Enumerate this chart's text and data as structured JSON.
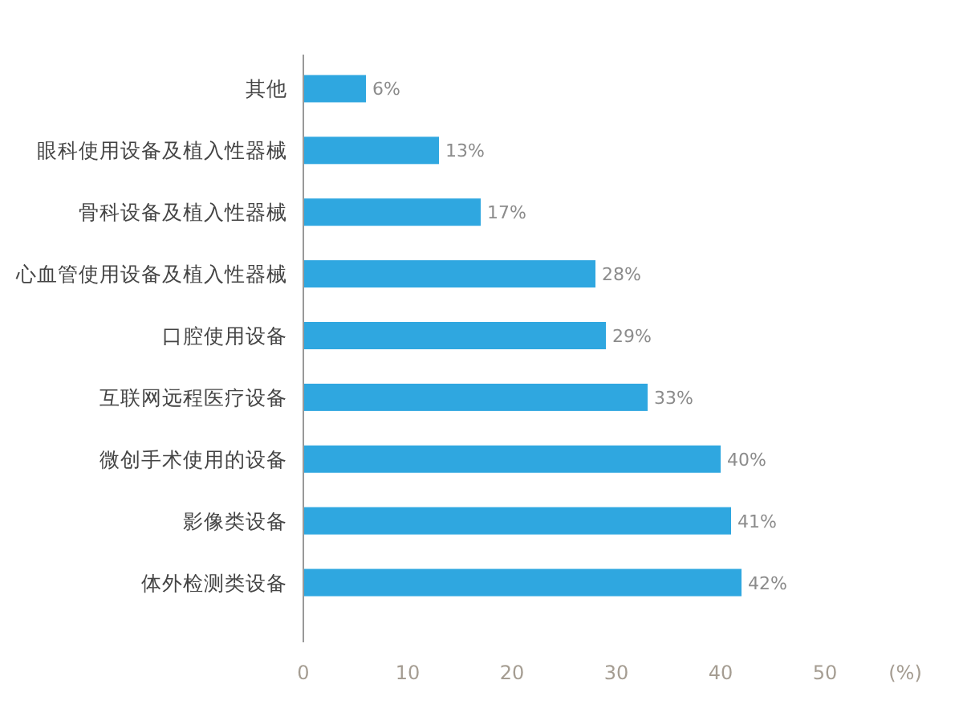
{
  "chart_data": {
    "type": "bar",
    "orientation": "horizontal",
    "xlabel": "(%)",
    "categories": [
      "其他",
      "眼科使用设备及植入性器械",
      "骨科设备及植入性器械",
      "心血管使用设备及植入性器械",
      "口腔使用设备",
      "互联网远程医疗设备",
      "微创手术使用的设备",
      "影像类设备",
      "体外检测类设备"
    ],
    "values": [
      6,
      13,
      17,
      28,
      29,
      33,
      40,
      41,
      42
    ],
    "value_labels": [
      "6%",
      "13%",
      "17%",
      "28%",
      "29%",
      "33%",
      "40%",
      "41%",
      "42%"
    ],
    "color": "#2fa7e0",
    "xlim": [
      0,
      50
    ],
    "xticks": [
      0,
      10,
      20,
      30,
      40,
      50
    ]
  }
}
